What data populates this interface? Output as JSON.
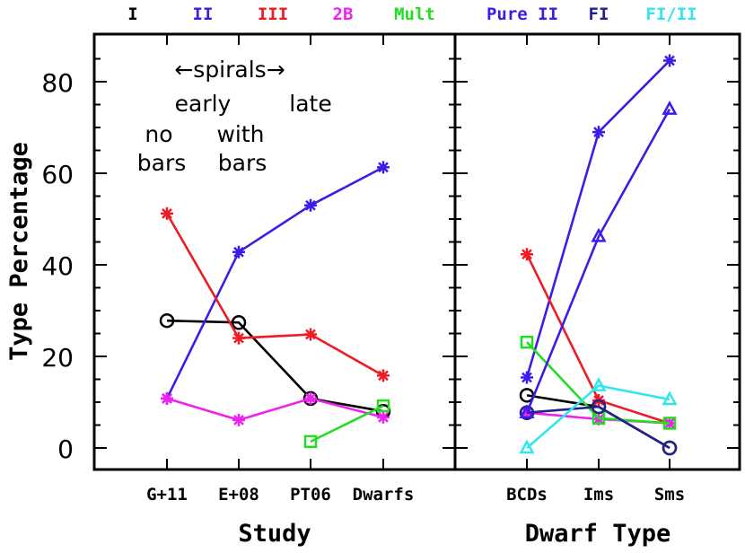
{
  "chart_data": {
    "type": "line",
    "ylabel": "Type Percentage",
    "ylim": [
      -5,
      90
    ],
    "yticks": [
      0,
      20,
      40,
      60,
      80
    ],
    "legend": [
      {
        "label": "I",
        "color": "#000000"
      },
      {
        "label": "II",
        "color": "#3a1ee8"
      },
      {
        "label": "III",
        "color": "#ee1c24"
      },
      {
        "label": "2B",
        "color": "#ee22ee"
      },
      {
        "label": "Mult",
        "color": "#22dd22"
      },
      {
        "label": "Pure II",
        "color": "#3a1ee8"
      },
      {
        "label": "FI",
        "color": "#22228a"
      },
      {
        "label": "FI/II",
        "color": "#33e6ee"
      }
    ],
    "panels": [
      {
        "xlabel": "Study",
        "categories": [
          "G+11",
          "E+08",
          "PT06",
          "Dwarfs"
        ],
        "annotations": [
          "←spirals→",
          "early",
          "late",
          "no",
          "bars",
          "with",
          "bars"
        ],
        "series": [
          {
            "name": "I",
            "color": "#000000",
            "marker": "circle",
            "values": [
              27.8,
              27.4,
              10.8,
              8.0
            ]
          },
          {
            "name": "II",
            "color": "#3a1ee8",
            "marker": "star",
            "values": [
              10.8,
              42.8,
              53.0,
              61.3
            ]
          },
          {
            "name": "III",
            "color": "#ee1c24",
            "marker": "star",
            "values": [
              51.2,
              24.0,
              24.8,
              15.8
            ]
          },
          {
            "name": "2B",
            "color": "#ee22ee",
            "marker": "star",
            "values": [
              10.8,
              6.1,
              10.8,
              6.7
            ]
          },
          {
            "name": "Mult",
            "color": "#22dd22",
            "marker": "square",
            "values": [
              null,
              null,
              1.4,
              9.2
            ]
          }
        ]
      },
      {
        "xlabel": "Dwarf Type",
        "categories": [
          "BCDs",
          "Ims",
          "Sms"
        ],
        "series": [
          {
            "name": "I",
            "color": "#000000",
            "marker": "circle",
            "values": [
              11.5,
              9.0,
              0.0
            ]
          },
          {
            "name": "Pure II",
            "color": "#3a1ee8",
            "marker": "star",
            "values": [
              15.4,
              69.0,
              84.6
            ]
          },
          {
            "name": "III",
            "color": "#ee1c24",
            "marker": "star",
            "values": [
              42.3,
              10.4,
              5.4
            ]
          },
          {
            "name": "2B",
            "color": "#ee22ee",
            "marker": "star",
            "values": [
              7.7,
              6.3,
              5.4
            ]
          },
          {
            "name": "Mult",
            "color": "#22dd22",
            "marker": "square",
            "values": [
              23.1,
              6.5,
              5.4
            ]
          },
          {
            "name": "FI",
            "color": "#22228a",
            "marker": "circle",
            "values": [
              7.7,
              9.0,
              0.0
            ]
          },
          {
            "name": "FI/II",
            "color": "#33e6ee",
            "marker": "triangle",
            "values": [
              0.0,
              13.6,
              10.6
            ]
          },
          {
            "name": "II",
            "color": "#3a1ee8",
            "marker": "triangle",
            "values": [
              7.7,
              46.2,
              74.0
            ]
          }
        ]
      }
    ]
  }
}
